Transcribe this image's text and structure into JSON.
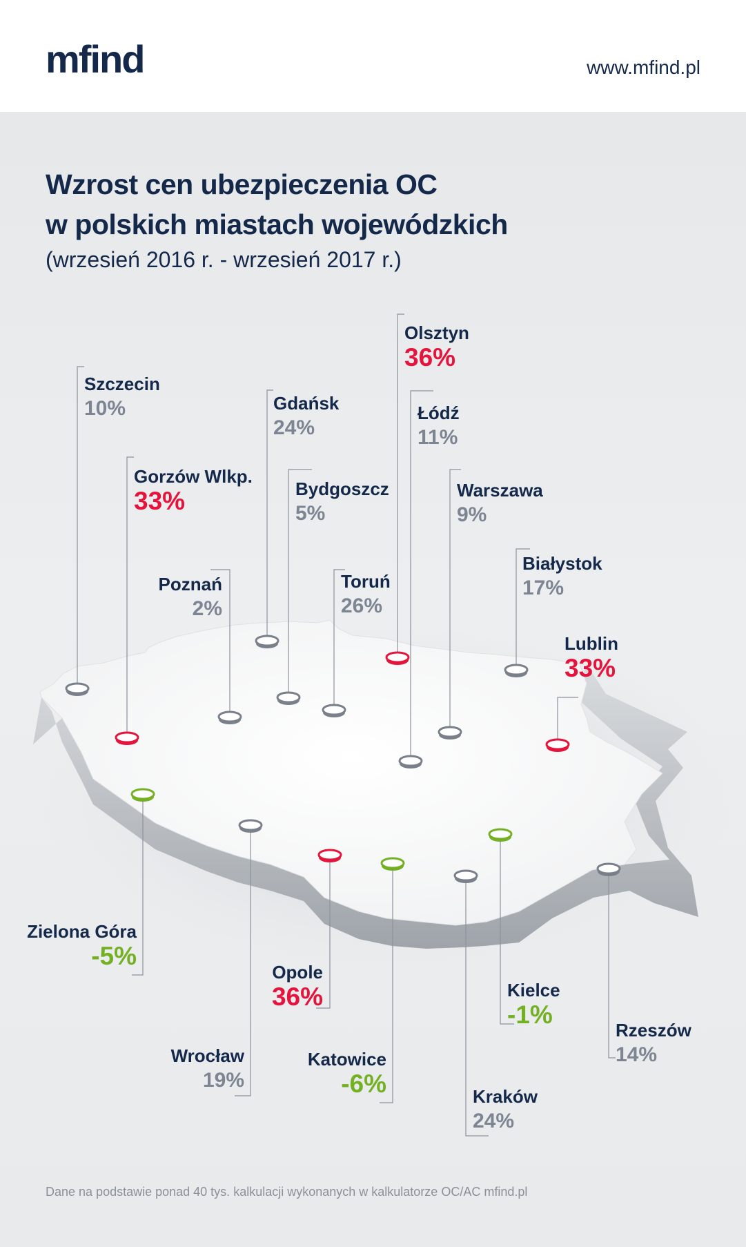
{
  "header": {
    "logo_text": "mfind",
    "url": "www.mfind.pl"
  },
  "title": {
    "line1": "Wzrost cen ubezpieczenia OC",
    "line2": "w polskich miastach wojewódzkich",
    "period": "(wrzesień 2016 r. - wrzesień 2017 r.)"
  },
  "colors": {
    "navy": "#14284a",
    "increase_high": "#e4143c",
    "decrease": "#74b023",
    "neutral": "#7d8593"
  },
  "cities": [
    {
      "name": "Szczecin",
      "value": "10%",
      "category": "gray"
    },
    {
      "name": "Gdańsk",
      "value": "24%",
      "category": "gray"
    },
    {
      "name": "Olsztyn",
      "value": "36%",
      "category": "red"
    },
    {
      "name": "Łódź",
      "value": "11%",
      "category": "gray"
    },
    {
      "name": "Gorzów Wlkp.",
      "value": "33%",
      "category": "red"
    },
    {
      "name": "Bydgoszcz",
      "value": "5%",
      "category": "gray"
    },
    {
      "name": "Warszawa",
      "value": "9%",
      "category": "gray"
    },
    {
      "name": "Białystok",
      "value": "17%",
      "category": "gray"
    },
    {
      "name": "Poznań",
      "value": "2%",
      "category": "gray"
    },
    {
      "name": "Toruń",
      "value": "26%",
      "category": "gray"
    },
    {
      "name": "Lublin",
      "value": "33%",
      "category": "red"
    },
    {
      "name": "Zielona Góra",
      "value": "-5%",
      "category": "green"
    },
    {
      "name": "Opole",
      "value": "36%",
      "category": "red"
    },
    {
      "name": "Kielce",
      "value": "-1%",
      "category": "green"
    },
    {
      "name": "Rzeszów",
      "value": "14%",
      "category": "gray"
    },
    {
      "name": "Wrocław",
      "value": "19%",
      "category": "gray"
    },
    {
      "name": "Katowice",
      "value": "-6%",
      "category": "green"
    },
    {
      "name": "Kraków",
      "value": "24%",
      "category": "gray"
    }
  ],
  "footnote": "Dane na podstawie ponad 40 tys. kalkulacji wykonanych w kalkulatorze OC/AC mfind.pl"
}
